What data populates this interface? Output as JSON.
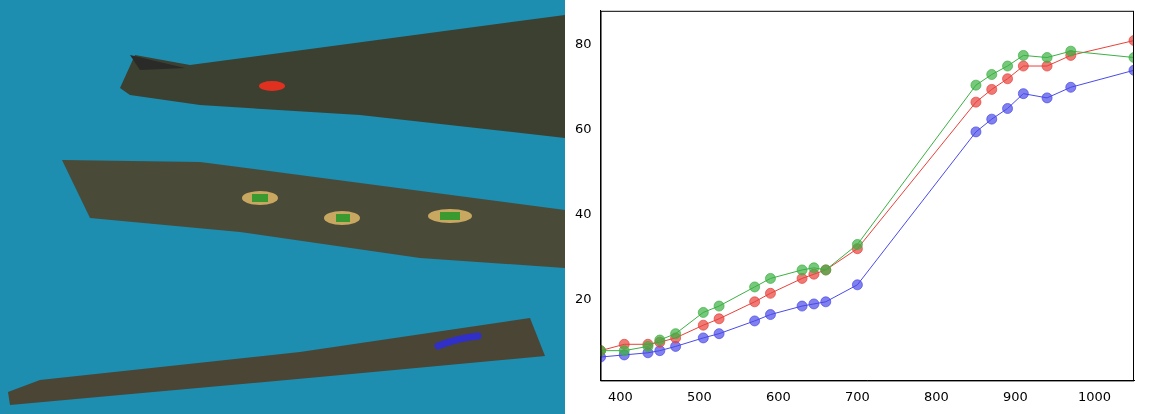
{
  "chart_data": {
    "type": "line",
    "x": [
      375,
      405,
      435,
      450,
      470,
      505,
      525,
      570,
      590,
      630,
      645,
      660,
      700,
      850,
      870,
      890,
      910,
      940,
      970,
      1050
    ],
    "series": [
      {
        "color": "#3cb043",
        "marker": "circle",
        "values": [
          8,
          8,
          9,
          10.5,
          12,
          17,
          18.5,
          23,
          25,
          27,
          27.5,
          27,
          33,
          70.5,
          73,
          75,
          77.5,
          77,
          78.5,
          77
        ]
      },
      {
        "color": "#e8413a",
        "marker": "circle",
        "values": [
          8,
          9.5,
          9.5,
          10,
          11,
          14,
          15.5,
          19.5,
          21.5,
          25,
          26,
          27,
          32,
          66.5,
          69.5,
          72,
          75,
          75,
          77.5,
          81
        ]
      },
      {
        "color": "#4a4ae8",
        "marker": "circle",
        "values": [
          6.5,
          7,
          7.5,
          8,
          9,
          11,
          12,
          15,
          16.5,
          18.5,
          19,
          19.5,
          23.5,
          59.5,
          62.5,
          65,
          68.5,
          67.5,
          70,
          74
        ]
      }
    ],
    "xlim": [
      375,
      1050
    ],
    "xticks": [
      400,
      500,
      600,
      700,
      800,
      900,
      1000
    ],
    "ylim": [
      1,
      88
    ],
    "yticks": [
      20,
      40,
      60,
      80
    ],
    "grid": false
  }
}
